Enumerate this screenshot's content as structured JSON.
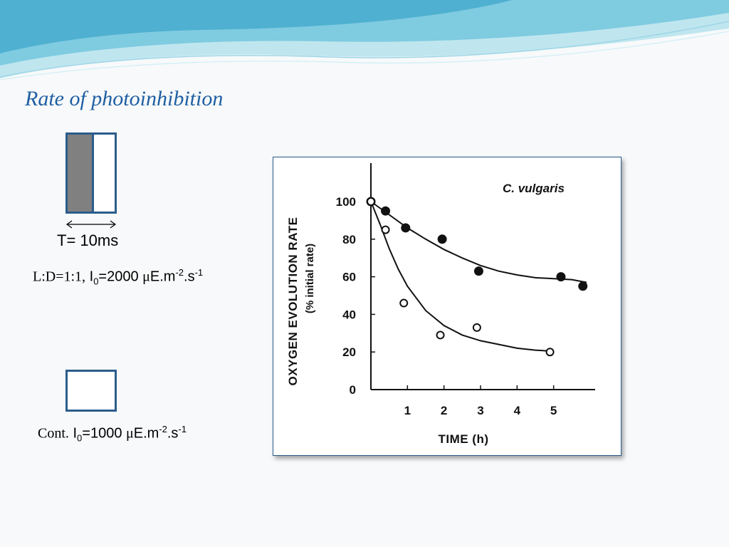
{
  "slide": {
    "title": "Rate of photoinhibition"
  },
  "pulse_diagram": {
    "period_label": "T= 10ms",
    "pulsed_condition": {
      "prefix": "L:D=1:1,",
      "intensity_symbol": "I",
      "intensity_subscript": "0",
      "intensity_value": "=2000",
      "unit_mu": "μ",
      "unit_main": "E.m",
      "unit_exp1": "-2",
      "unit_sep": ".s",
      "unit_exp2": "-1"
    },
    "continuous_condition": {
      "prefix": "Cont.",
      "intensity_symbol": "I",
      "intensity_subscript": "0",
      "intensity_value": "=1000",
      "unit_mu": "μ",
      "unit_main": "E.m",
      "unit_exp1": "-2",
      "unit_sep": ".s",
      "unit_exp2": "-1"
    }
  },
  "colors": {
    "title": "#1f5fa3",
    "box_border": "#2b5c8c",
    "dark_phase": "#808080",
    "wave_light": "#bfe6ef",
    "wave_mid": "#7fcbe0",
    "wave_dark": "#4fb0d1"
  },
  "chart_data": {
    "type": "scatter",
    "title": "",
    "annotation": "C. vulgaris",
    "xlabel": "TIME (h)",
    "ylabel": "OXYGEN EVOLUTION RATE",
    "ylabel_sub": "(% initial rate)",
    "xlim": [
      0,
      6
    ],
    "ylim": [
      0,
      100
    ],
    "xticks": [
      1,
      2,
      3,
      4,
      5
    ],
    "yticks": [
      0,
      20,
      40,
      60,
      80,
      100
    ],
    "grid": false,
    "series": [
      {
        "marker": "filled-circle",
        "points": [
          {
            "x": 0,
            "y": 100
          },
          {
            "x": 0.4,
            "y": 95
          },
          {
            "x": 0.95,
            "y": 86
          },
          {
            "x": 1.95,
            "y": 80
          },
          {
            "x": 2.95,
            "y": 63
          },
          {
            "x": 5.2,
            "y": 60
          },
          {
            "x": 5.8,
            "y": 55
          }
        ],
        "fit_curve": [
          {
            "x": 0,
            "y": 100
          },
          {
            "x": 0.5,
            "y": 93
          },
          {
            "x": 1,
            "y": 86
          },
          {
            "x": 1.5,
            "y": 80
          },
          {
            "x": 2,
            "y": 74.5
          },
          {
            "x": 2.5,
            "y": 70
          },
          {
            "x": 3,
            "y": 66
          },
          {
            "x": 3.5,
            "y": 63
          },
          {
            "x": 4,
            "y": 61
          },
          {
            "x": 4.5,
            "y": 59.5
          },
          {
            "x": 5,
            "y": 59
          },
          {
            "x": 5.5,
            "y": 58.5
          },
          {
            "x": 5.9,
            "y": 57
          }
        ]
      },
      {
        "marker": "open-circle",
        "points": [
          {
            "x": 0,
            "y": 100
          },
          {
            "x": 0.4,
            "y": 85
          },
          {
            "x": 0.9,
            "y": 46
          },
          {
            "x": 1.9,
            "y": 29
          },
          {
            "x": 2.9,
            "y": 33
          },
          {
            "x": 4.9,
            "y": 20
          }
        ],
        "fit_curve": [
          {
            "x": 0,
            "y": 100
          },
          {
            "x": 0.25,
            "y": 88
          },
          {
            "x": 0.5,
            "y": 75
          },
          {
            "x": 0.75,
            "y": 64
          },
          {
            "x": 1,
            "y": 55
          },
          {
            "x": 1.5,
            "y": 42
          },
          {
            "x": 2,
            "y": 34
          },
          {
            "x": 2.5,
            "y": 29
          },
          {
            "x": 3,
            "y": 26
          },
          {
            "x": 3.5,
            "y": 24
          },
          {
            "x": 4,
            "y": 22
          },
          {
            "x": 4.5,
            "y": 21
          },
          {
            "x": 4.9,
            "y": 20.5
          }
        ]
      }
    ]
  }
}
